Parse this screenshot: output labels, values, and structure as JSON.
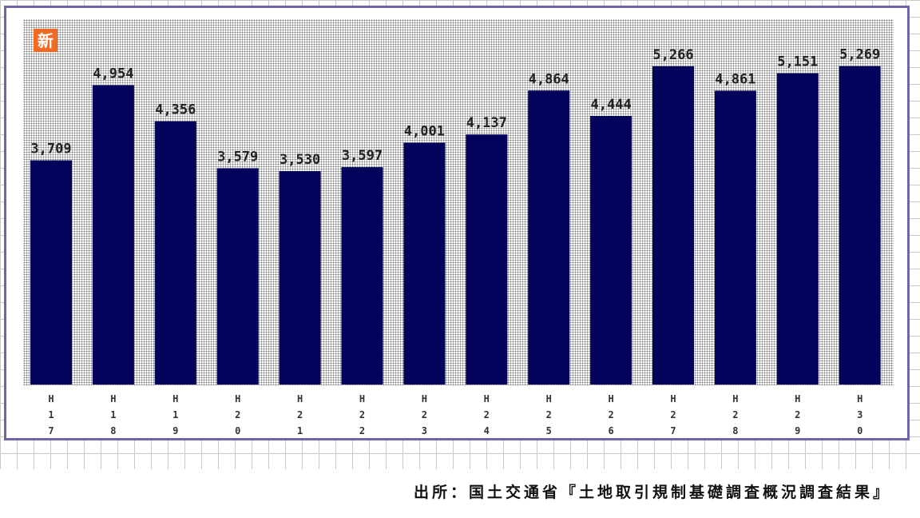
{
  "badge": {
    "label": "新"
  },
  "source": {
    "text": "出所：国土交通省『土地取引規制基礎調査概況調査結果』"
  },
  "colors": {
    "bar": "#03035c",
    "frame": "#6b67a8",
    "badge": "#f06a22"
  },
  "chart_data": {
    "type": "bar",
    "title": "",
    "xlabel": "",
    "ylabel": "",
    "categories": [
      "H17",
      "H18",
      "H19",
      "H20",
      "H21",
      "H22",
      "H23",
      "H24",
      "H25",
      "H26",
      "H27",
      "H28",
      "H29",
      "H30"
    ],
    "values": [
      3709,
      4954,
      4356,
      3579,
      3530,
      3597,
      4001,
      4137,
      4864,
      4444,
      5266,
      4861,
      5151,
      5269
    ],
    "value_labels": [
      "3,709",
      "4,954",
      "4,356",
      "3,579",
      "3,530",
      "3,597",
      "4,001",
      "4,137",
      "4,864",
      "4,444",
      "5,266",
      "4,861",
      "5,151",
      "5,269"
    ],
    "ylim": [
      0,
      5500
    ],
    "grid": false,
    "legend": "none"
  }
}
